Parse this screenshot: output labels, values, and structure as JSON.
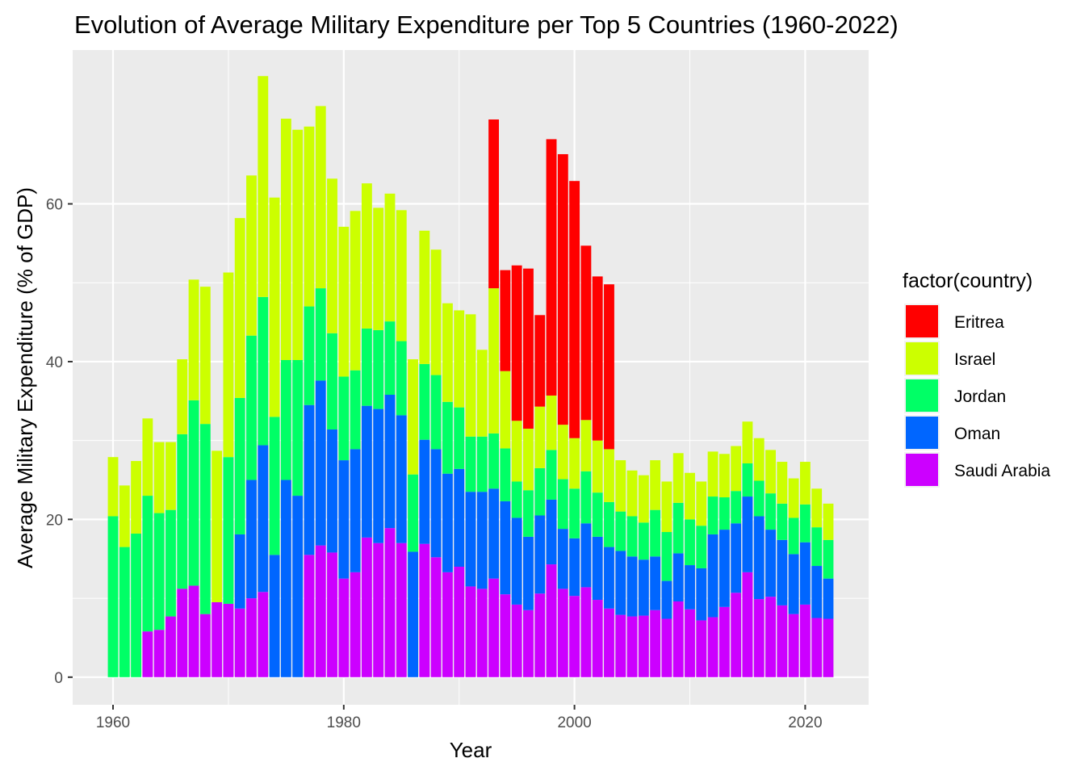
{
  "chart_data": {
    "type": "bar",
    "stacked": true,
    "title": "Evolution of Average Military Expenditure per Top 5 Countries (1960-2022)",
    "xlabel": "Year",
    "ylabel": "Average Military Expenditure (% of GDP)",
    "xlim": [
      1956.5,
      2025.5
    ],
    "ylim": [
      -3.5,
      79.5
    ],
    "x_ticks": [
      1960,
      1980,
      2000,
      2020
    ],
    "y_ticks": [
      0,
      20,
      40,
      60
    ],
    "grid": true,
    "legend": {
      "title": "factor(country)",
      "position": "right"
    },
    "x": [
      1960,
      1961,
      1962,
      1963,
      1964,
      1965,
      1966,
      1967,
      1968,
      1969,
      1970,
      1971,
      1972,
      1973,
      1974,
      1975,
      1976,
      1977,
      1978,
      1979,
      1980,
      1981,
      1982,
      1983,
      1984,
      1985,
      1986,
      1987,
      1988,
      1989,
      1990,
      1991,
      1992,
      1993,
      1994,
      1995,
      1996,
      1997,
      1998,
      1999,
      2000,
      2001,
      2002,
      2003,
      2004,
      2005,
      2006,
      2007,
      2008,
      2009,
      2010,
      2011,
      2012,
      2013,
      2014,
      2015,
      2016,
      2017,
      2018,
      2019,
      2020,
      2021,
      2022
    ],
    "series": [
      {
        "name": "Saudi Arabia",
        "color": "#CC00FF",
        "values": [
          0,
          0,
          0,
          5.8,
          6.0,
          7.7,
          11.2,
          11.6,
          8.0,
          9.5,
          9.3,
          8.7,
          10.0,
          10.8,
          0,
          0,
          0,
          15.5,
          16.7,
          15.8,
          12.5,
          13.3,
          17.7,
          17.0,
          18.9,
          17.0,
          0,
          16.9,
          15.2,
          13.3,
          14.0,
          11.5,
          11.2,
          12.5,
          10.5,
          9.2,
          8.5,
          10.6,
          14.3,
          11.2,
          10.3,
          11.4,
          9.8,
          8.7,
          7.9,
          7.7,
          7.8,
          8.5,
          7.4,
          9.6,
          8.6,
          7.2,
          7.6,
          8.9,
          10.7,
          13.3,
          9.9,
          10.2,
          9.1,
          8.0,
          9.2,
          7.5,
          7.4
        ]
      },
      {
        "name": "Oman",
        "color": "#0066FF",
        "values": [
          0,
          0,
          0,
          0,
          0,
          0,
          0,
          0,
          0,
          0,
          0,
          9.4,
          15.0,
          18.6,
          15.5,
          25.0,
          23.0,
          19.0,
          20.9,
          15.6,
          15.0,
          15.6,
          16.7,
          17.0,
          16.9,
          16.2,
          15.9,
          13.2,
          13.7,
          12.5,
          12.4,
          12.0,
          12.3,
          11.4,
          11.8,
          11.0,
          9.3,
          9.9,
          8.2,
          7.6,
          7.3,
          8.1,
          8.0,
          7.8,
          8.1,
          7.6,
          7.1,
          6.8,
          4.8,
          6.1,
          5.6,
          6.6,
          10.5,
          9.8,
          8.8,
          9.6,
          10.5,
          8.5,
          8.3,
          7.6,
          7.9,
          6.6,
          5.1
        ]
      },
      {
        "name": "Jordan",
        "color": "#00FF66",
        "values": [
          20.4,
          16.5,
          18.2,
          17.2,
          14.8,
          13.5,
          19.6,
          23.5,
          24.1,
          0,
          18.6,
          17.3,
          18.3,
          18.8,
          17.5,
          15.2,
          17.2,
          12.5,
          11.7,
          12.2,
          10.6,
          10.0,
          9.8,
          10.0,
          9.3,
          9.4,
          9.8,
          9.6,
          9.4,
          9.1,
          7.8,
          7.0,
          7.0,
          7.0,
          6.7,
          4.6,
          5.9,
          6.0,
          6.3,
          6.3,
          6.3,
          6.6,
          5.6,
          5.7,
          5.0,
          5.1,
          4.7,
          5.9,
          6.2,
          6.4,
          5.8,
          5.4,
          4.8,
          4.1,
          4.1,
          4.2,
          4.5,
          4.6,
          4.6,
          4.6,
          4.8,
          4.9,
          4.9
        ]
      },
      {
        "name": "Israel",
        "color": "#CCFF00",
        "values": [
          7.5,
          7.8,
          9.2,
          9.8,
          9.0,
          8.6,
          9.5,
          15.3,
          17.4,
          19.2,
          23.4,
          22.8,
          20.3,
          28.0,
          27.8,
          30.6,
          29.2,
          22.8,
          23.1,
          19.6,
          19.0,
          20.2,
          18.4,
          15.5,
          16.2,
          16.6,
          14.6,
          16.9,
          15.9,
          12.5,
          12.3,
          15.5,
          11.0,
          18.4,
          9.8,
          7.7,
          7.8,
          7.8,
          6.9,
          6.9,
          6.4,
          6.5,
          6.6,
          6.7,
          6.5,
          5.8,
          6.0,
          6.3,
          6.4,
          6.3,
          5.9,
          5.6,
          5.7,
          5.5,
          5.7,
          5.3,
          5.4,
          5.5,
          5.3,
          5.0,
          5.4,
          4.9,
          4.6
        ]
      },
      {
        "name": "Eritrea",
        "color": "#FF0000",
        "values": [
          0,
          0,
          0,
          0,
          0,
          0,
          0,
          0,
          0,
          0,
          0,
          0,
          0,
          0,
          0,
          0,
          0,
          0,
          0,
          0,
          0,
          0,
          0,
          0,
          0,
          0,
          0,
          0,
          0,
          0,
          0,
          0,
          0,
          21.4,
          12.8,
          19.7,
          20.3,
          11.6,
          32.5,
          34.3,
          32.6,
          22.1,
          20.8,
          20.9,
          0,
          0,
          0,
          0,
          0,
          0,
          0,
          0,
          0,
          0,
          0,
          0,
          0,
          0,
          0,
          0,
          0,
          0,
          0
        ]
      }
    ]
  }
}
